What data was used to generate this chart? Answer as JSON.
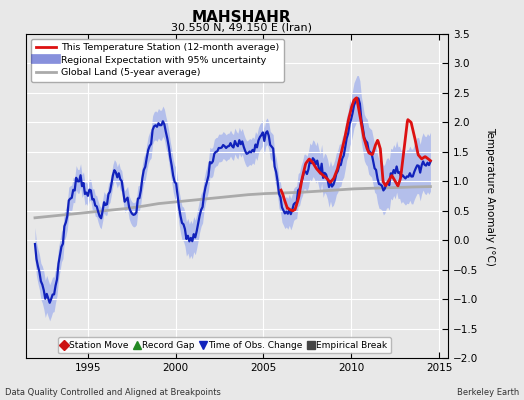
{
  "title": "MAHSHAHR",
  "subtitle": "30.550 N, 49.150 E (Iran)",
  "ylabel": "Temperature Anomaly (°C)",
  "footer_left": "Data Quality Controlled and Aligned at Breakpoints",
  "footer_right": "Berkeley Earth",
  "xlim": [
    1991.5,
    2015.5
  ],
  "ylim": [
    -2.0,
    3.5
  ],
  "yticks": [
    -2,
    -1.5,
    -1,
    -0.5,
    0,
    0.5,
    1,
    1.5,
    2,
    2.5,
    3,
    3.5
  ],
  "xticks": [
    1995,
    2000,
    2005,
    2010,
    2015
  ],
  "bg_color": "#e8e8e8",
  "plot_bg": "#e8e8e8",
  "blue_line_color": "#1122bb",
  "blue_fill_color": "#99aaee",
  "red_line_color": "#dd1111",
  "gray_line_color": "#aaaaaa",
  "legend1_items": [
    {
      "label": "This Temperature Station (12-month average)",
      "color": "#dd1111",
      "lw": 2.0
    },
    {
      "label": "Regional Expectation with 95% uncertainty",
      "color": "#1122bb",
      "lw": 1.8
    },
    {
      "label": "Global Land (5-year average)",
      "color": "#aaaaaa",
      "lw": 2.0
    }
  ],
  "legend2_items": [
    {
      "label": "Station Move",
      "marker": "D",
      "color": "#cc1111"
    },
    {
      "label": "Record Gap",
      "marker": "^",
      "color": "#228822"
    },
    {
      "label": "Time of Obs. Change",
      "marker": "v",
      "color": "#1122bb"
    },
    {
      "label": "Empirical Break",
      "marker": "s",
      "color": "#444444"
    }
  ]
}
